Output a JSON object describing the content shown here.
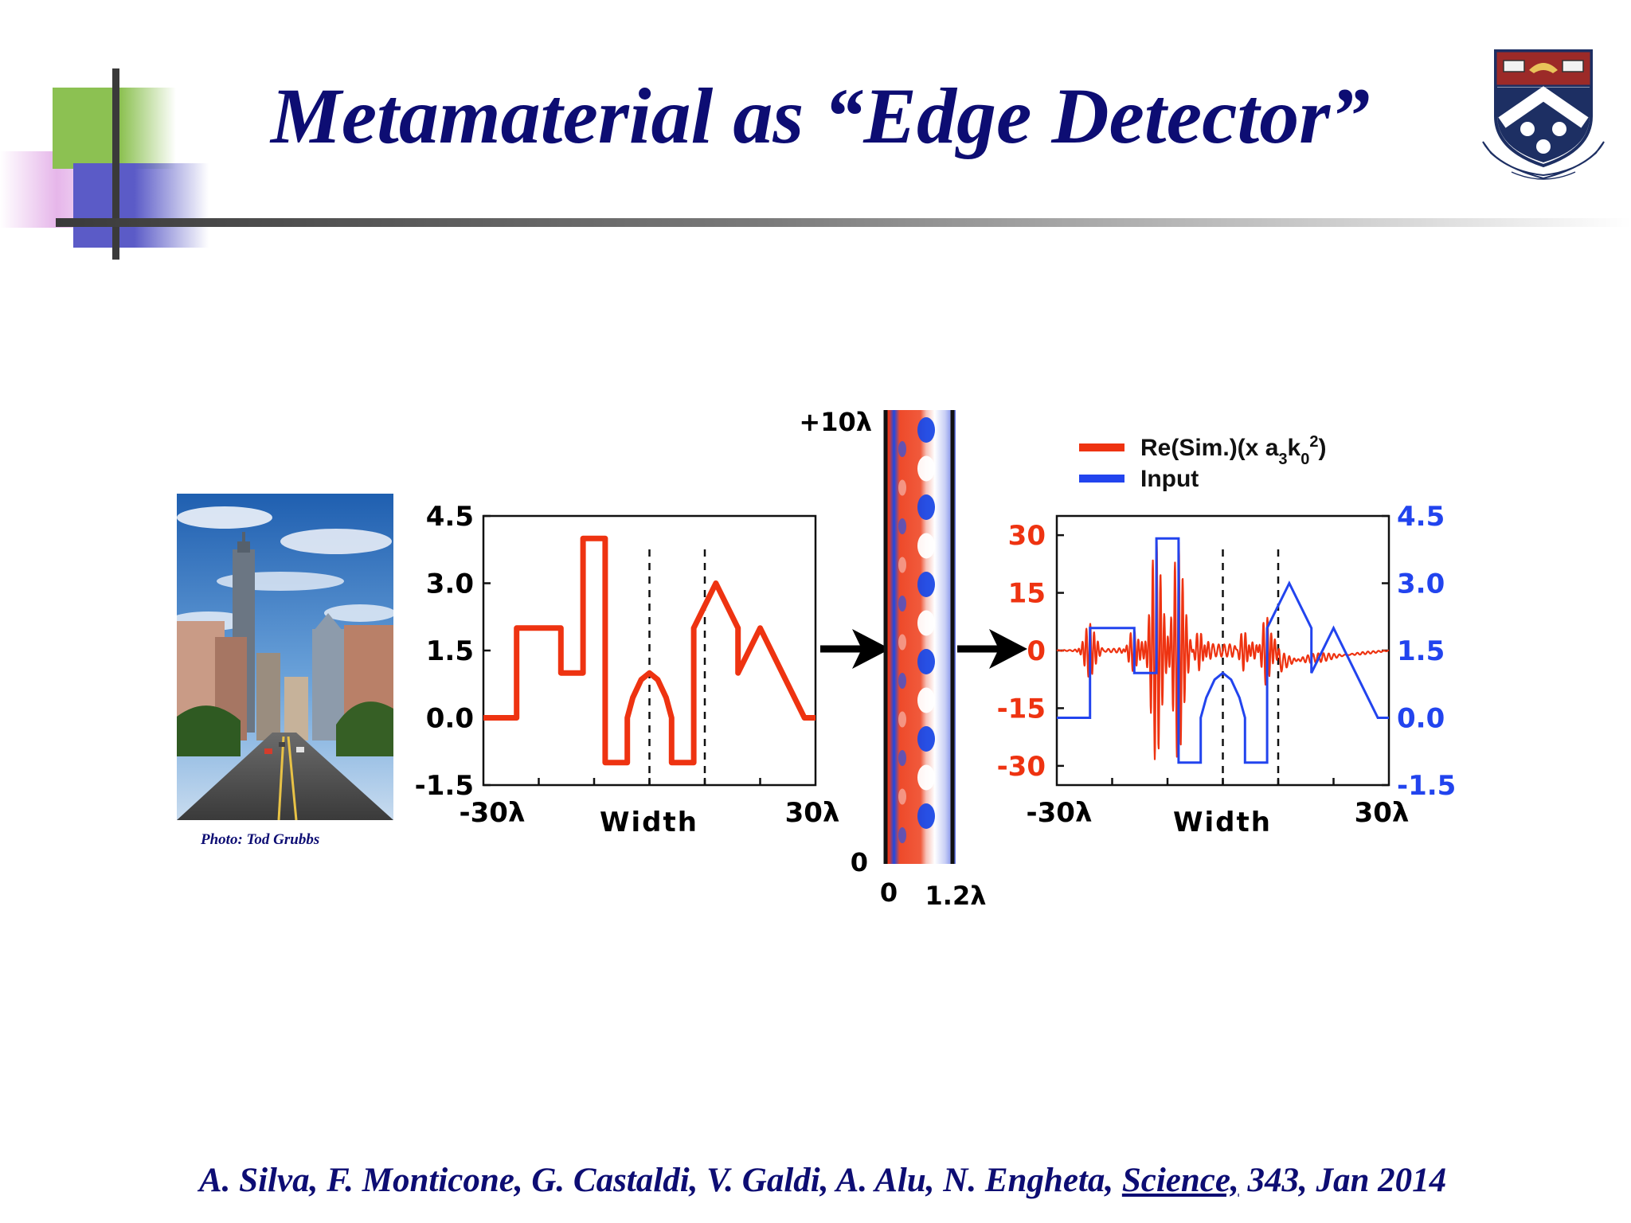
{
  "slide": {
    "title": "Metamaterial as “Edge Detector”",
    "photo_credit": "Photo:  Tod Grubbs",
    "citation_pre": "A. Silva, F. Monticone, G. Castaldi, V. Galdi, A. Alu, N. Engheta, ",
    "citation_journal": "Science,",
    "citation_post": " 343, Jan 2014"
  },
  "colors": {
    "title": "#0d0d73",
    "sim": "#ee3311",
    "input": "#2244ee"
  },
  "chart_data": [
    {
      "type": "line",
      "name": "input-profile",
      "xlabel": "Width",
      "x_tick_labels": [
        "-30λ",
        "30λ"
      ],
      "xlim": [
        -30,
        30
      ],
      "ylim": [
        -1.5,
        4.5
      ],
      "y_tick_labels": [
        "4.5",
        "3.0",
        "1.5",
        "0.0",
        "-1.5"
      ],
      "dashed_lines_x": [
        0,
        10
      ],
      "series": [
        {
          "color": "#ee3311",
          "points": [
            [
              -30,
              0
            ],
            [
              -24,
              0
            ],
            [
              -24,
              2
            ],
            [
              -16,
              2
            ],
            [
              -16,
              1
            ],
            [
              -12,
              1
            ],
            [
              -12,
              4
            ],
            [
              -8,
              4
            ],
            [
              -8,
              -1
            ],
            [
              -4,
              -1
            ],
            [
              -4,
              0
            ],
            [
              -3,
              0.45
            ],
            [
              -1.5,
              0.85
            ],
            [
              0,
              1
            ],
            [
              1.5,
              0.85
            ],
            [
              3,
              0.45
            ],
            [
              4,
              0
            ],
            [
              4,
              -1
            ],
            [
              8,
              -1
            ],
            [
              8,
              2
            ],
            [
              12,
              3
            ],
            [
              16,
              2
            ],
            [
              16,
              1
            ],
            [
              20,
              2
            ],
            [
              24,
              1
            ],
            [
              28,
              0
            ],
            [
              30,
              0
            ]
          ]
        }
      ]
    },
    {
      "type": "heatmap",
      "name": "metamaterial-field",
      "x_tick_labels": [
        "0",
        "1.2λ"
      ],
      "y_tick_labels": [
        "+10λ",
        "0"
      ]
    },
    {
      "type": "line",
      "name": "output-comparison",
      "xlabel": "Width",
      "x_tick_labels": [
        "-30λ",
        "30λ"
      ],
      "xlim": [
        -30,
        30
      ],
      "ylim_left": [
        -35,
        35
      ],
      "y_tick_labels_left": [
        "30",
        "15",
        "0",
        "-15",
        "-30"
      ],
      "ylim_right": [
        -1.5,
        4.5
      ],
      "y_tick_labels_right": [
        "4.5",
        "3.0",
        "1.5",
        "0.0",
        "-1.5"
      ],
      "dashed_lines_x": [
        0,
        10
      ],
      "legend": {
        "placement": "top",
        "entries": [
          "Re(Sim.)(x a3k0²)",
          "Input"
        ]
      },
      "series": [
        {
          "name": "Re(Sim.)(x a3k0²)",
          "color": "#ee3311",
          "axis": "left",
          "edges": [
            [
              -24,
              7
            ],
            [
              -16,
              5
            ],
            [
              -12,
              29
            ],
            [
              -8,
              28
            ],
            [
              -4,
              4
            ],
            [
              4,
              4
            ],
            [
              8,
              8
            ]
          ],
          "ramp": [
            [
              10,
              -3
            ],
            [
              30,
              0
            ]
          ]
        },
        {
          "name": "Input",
          "color": "#2244ee",
          "axis": "right",
          "points": [
            [
              -30,
              0
            ],
            [
              -24,
              0
            ],
            [
              -24,
              2
            ],
            [
              -16,
              2
            ],
            [
              -16,
              1
            ],
            [
              -12,
              1
            ],
            [
              -12,
              4
            ],
            [
              -8,
              4
            ],
            [
              -8,
              -1
            ],
            [
              -4,
              -1
            ],
            [
              -4,
              0
            ],
            [
              -3,
              0.45
            ],
            [
              -1.5,
              0.85
            ],
            [
              0,
              1
            ],
            [
              1.5,
              0.85
            ],
            [
              3,
              0.45
            ],
            [
              4,
              0
            ],
            [
              4,
              -1
            ],
            [
              8,
              -1
            ],
            [
              8,
              2
            ],
            [
              12,
              3
            ],
            [
              16,
              2
            ],
            [
              16,
              1
            ],
            [
              20,
              2
            ],
            [
              24,
              1
            ],
            [
              28,
              0
            ],
            [
              30,
              0
            ]
          ]
        }
      ]
    }
  ]
}
